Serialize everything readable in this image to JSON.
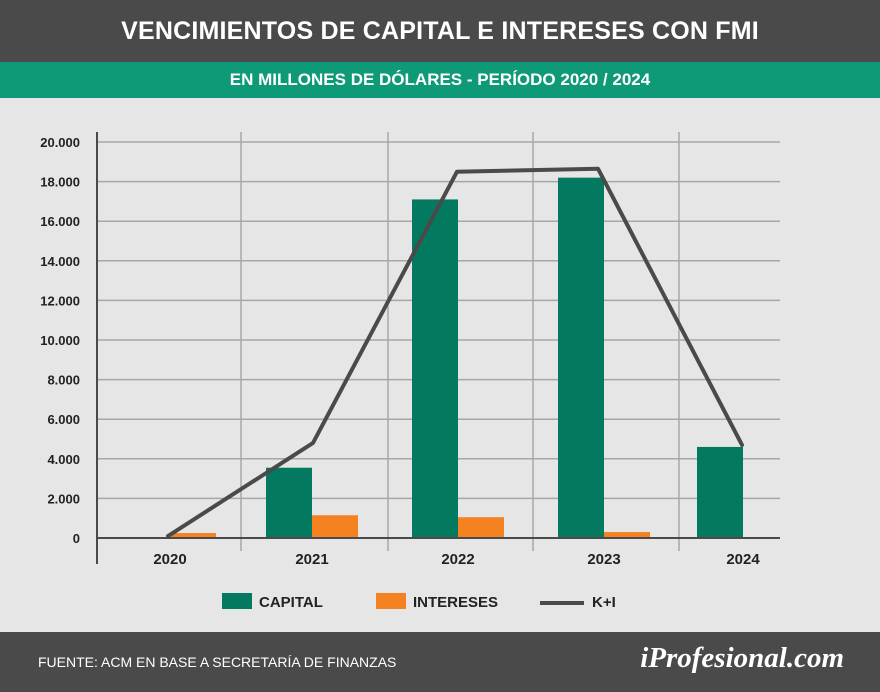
{
  "header": {
    "title": "VENCIMIENTOS DE CAPITAL E INTERESES CON FMI",
    "subtitle": "EN MILLONES DE DÓLARES - PERÍODO 2020 / 2024"
  },
  "footer": {
    "source": "FUENTE: ACM EN BASE A SECRETARÍA DE FINANZAS",
    "brand": "iProfesional.com"
  },
  "colors": {
    "capital": "#037a5f",
    "intereses": "#f58220",
    "total_line": "#4a4a4a",
    "header_bg": "#4a4a4a",
    "subheader_bg": "#0f9a77",
    "chart_bg": "#e6e6e6"
  },
  "chart_data": {
    "type": "bar",
    "categories": [
      "2020",
      "2021",
      "2022",
      "2023",
      "2024"
    ],
    "series": [
      {
        "name": "CAPITAL",
        "kind": "bar",
        "values": [
          0,
          3550,
          17100,
          18200,
          4600
        ]
      },
      {
        "name": "INTERESES",
        "kind": "bar",
        "values": [
          250,
          1150,
          1050,
          300,
          0
        ]
      },
      {
        "name": "K+I",
        "kind": "line",
        "values": [
          100,
          4800,
          18500,
          18650,
          4700
        ]
      }
    ],
    "y_ticks": [
      "0",
      "2.000",
      "4.000",
      "6.000",
      "8.000",
      "10.000",
      "12.000",
      "14.000",
      "16.000",
      "18.000",
      "20.000"
    ],
    "ylim": [
      0,
      20000
    ],
    "grid": true,
    "legend_position": "bottom"
  }
}
